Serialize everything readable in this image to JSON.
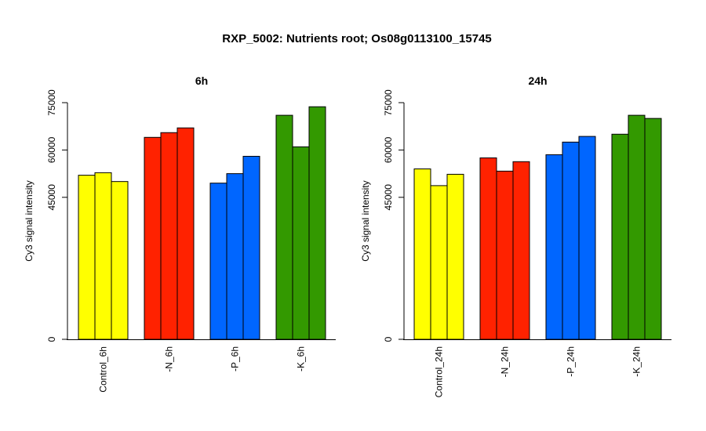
{
  "title": "RXP_5002: Nutrients root; Os08g0113100_15745",
  "chart_data": [
    {
      "type": "bar",
      "title": "6h",
      "ylabel": "Cy3 signal intensity",
      "ylim": [
        0,
        75000
      ],
      "yticks": [
        0,
        45000,
        60000,
        75000
      ],
      "categories": [
        "Control_6h",
        "-N_6h",
        "-P_6h",
        "-K_6h"
      ],
      "group_colors": [
        "#ffff00",
        "#ff2200",
        "#0066ff",
        "#339900"
      ],
      "values": [
        [
          52000,
          52800,
          50000
        ],
        [
          64000,
          65500,
          67000
        ],
        [
          49500,
          52500,
          58000
        ],
        [
          71000,
          61000,
          73700
        ]
      ]
    },
    {
      "type": "bar",
      "title": "24h",
      "ylabel": "Cy3 signal intensity",
      "ylim": [
        0,
        75000
      ],
      "yticks": [
        0,
        45000,
        60000,
        75000
      ],
      "categories": [
        "Control_24h",
        "-N_24h",
        "-P_24h",
        "-K_24h"
      ],
      "group_colors": [
        "#ffff00",
        "#ff2200",
        "#0066ff",
        "#339900"
      ],
      "values": [
        [
          54000,
          48700,
          52300
        ],
        [
          57500,
          53300,
          56300
        ],
        [
          58500,
          62500,
          64300
        ],
        [
          65000,
          71000,
          70000
        ]
      ]
    }
  ]
}
